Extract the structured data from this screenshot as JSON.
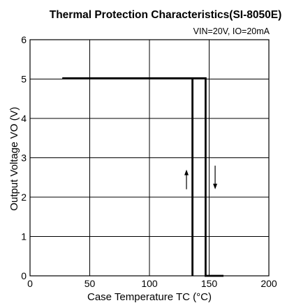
{
  "chart_data": {
    "type": "line",
    "title": "Thermal Protection Characteristics(SI-8050E)",
    "conditions": "VIN=20V, IO=20mA",
    "xlabel": "Case Temperature TC (°C)",
    "ylabel": "Output Voltage VO (V)",
    "xlim": [
      0,
      200
    ],
    "ylim": [
      0,
      6
    ],
    "xticks": [
      "0",
      "50",
      "100",
      "150",
      "200"
    ],
    "yticks": [
      "0",
      "1",
      "2",
      "3",
      "4",
      "5",
      "6"
    ],
    "grid": true,
    "series": [
      {
        "x": [
          27,
          147,
          147,
          162
        ],
        "y": [
          5.02,
          5.02,
          0,
          0
        ]
      },
      {
        "x": [
          136,
          136,
          147
        ],
        "y": [
          0,
          5.02,
          5.02
        ]
      }
    ],
    "arrows": [
      {
        "direction": "up",
        "x": 131,
        "y_from": 2.2,
        "y_to": 2.7
      },
      {
        "direction": "down",
        "x": 155,
        "y_from": 2.8,
        "y_to": 2.2
      }
    ]
  }
}
